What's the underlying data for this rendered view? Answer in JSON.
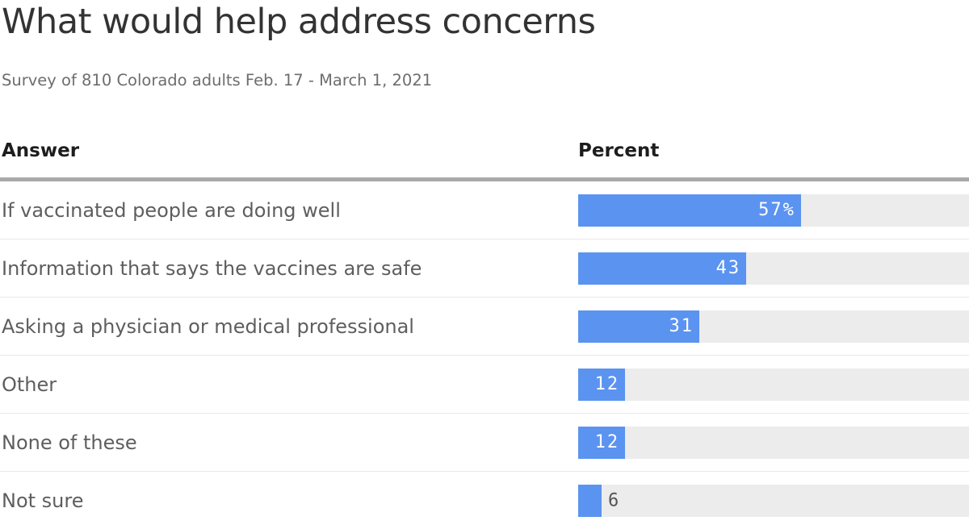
{
  "page": {
    "title": "What would help address concerns",
    "subtitle": "Survey of 810 Colorado adults Feb. 17 - March 1, 2021"
  },
  "table": {
    "answer_header": "Answer",
    "percent_header": "Percent"
  },
  "chart_data": {
    "type": "bar",
    "orientation": "horizontal",
    "title": "What would help address concerns",
    "subtitle": "Survey of 810 Colorado adults Feb. 17 - March 1, 2021",
    "xlabel": "Percent",
    "ylabel": "Answer",
    "xlim": [
      0,
      100
    ],
    "grid": false,
    "legend": "none",
    "categories": [
      "If vaccinated people are doing well",
      "Information that says the vaccines are safe",
      "Asking a physician or medical professional",
      "Other",
      "None of these",
      "Not sure"
    ],
    "values": [
      57,
      43,
      31,
      12,
      12,
      6
    ],
    "data_labels": [
      "57%",
      "43",
      "31",
      "12",
      "12",
      "6"
    ],
    "label_positions": [
      "inside",
      "inside",
      "inside",
      "inside",
      "inside",
      "outside"
    ],
    "colors": {
      "bar": "#5b93f0",
      "track": "#ececec",
      "divider": "#a9a9a9",
      "row_separator": "#e9e9e9",
      "title_text": "#333333",
      "subtitle_text": "#6d6d6d",
      "header_text": "#1d1d1d",
      "label_text": "#5e5e5e",
      "value_text_inside": "#ffffff",
      "value_text_outside": "#555555"
    }
  }
}
